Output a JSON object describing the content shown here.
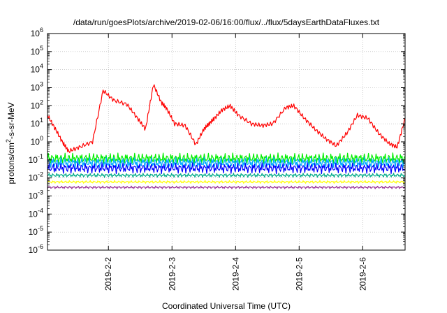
{
  "chart_data": {
    "type": "line",
    "title": "/data/run/goesPlots/archive/2019-02-06/16:00/flux/../flux/5daysEarthDataFluxes.txt",
    "xlabel": "Coordinated Universal Time (UTC)",
    "ylabel": "protons/cm²-s-sr-MeV",
    "ylabel_parts": {
      "pre": "protons/cm",
      "sup": "2",
      "post": "-s-sr-MeV"
    },
    "yscale": "log",
    "ylim_exponents": [
      -6,
      6
    ],
    "y_tick_labels": [
      {
        "base": "10",
        "exp": "-6"
      },
      {
        "base": "10",
        "exp": "-5"
      },
      {
        "base": "10",
        "exp": "-4"
      },
      {
        "base": "10",
        "exp": "-3"
      },
      {
        "base": "10",
        "exp": "-2"
      },
      {
        "base": "10",
        "exp": "-1"
      },
      {
        "base": "10",
        "exp": "0"
      },
      {
        "base": "10",
        "exp": "1"
      },
      {
        "base": "10",
        "exp": "2"
      },
      {
        "base": "10",
        "exp": "3"
      },
      {
        "base": "10",
        "exp": "4"
      },
      {
        "base": "10",
        "exp": "5"
      },
      {
        "base": "10",
        "exp": "6"
      }
    ],
    "x_tick_labels": [
      "2019-2-2",
      "2019-2-3",
      "2019-2-4",
      "2019-2-5",
      "2019-2-6"
    ],
    "xlim_days": [
      "2019-02-01T01:00",
      "2019-02-06T16:00"
    ],
    "grid": true,
    "series": [
      {
        "color": "#ff0000",
        "x": [
          "2019-02-01T01:00",
          "2019-02-01T04:00",
          "2019-02-01T07:00",
          "2019-02-01T09:00",
          "2019-02-01T13:00",
          "2019-02-01T18:00",
          "2019-02-01T22:00",
          "2019-02-02T02:00",
          "2019-02-02T07:00",
          "2019-02-02T11:00",
          "2019-02-02T14:00",
          "2019-02-02T17:00",
          "2019-02-02T20:00",
          "2019-02-02T22:00",
          "2019-02-03T01:00",
          "2019-02-03T05:00",
          "2019-02-03T09:00",
          "2019-02-03T12:00",
          "2019-02-03T14:00",
          "2019-02-03T16:00",
          "2019-02-03T19:00",
          "2019-02-03T22:00",
          "2019-02-04T01:00",
          "2019-02-04T06:00",
          "2019-02-04T10:00",
          "2019-02-04T14:00",
          "2019-02-04T19:00",
          "2019-02-04T22:00",
          "2019-02-05T02:00",
          "2019-02-05T06:00",
          "2019-02-05T10:00",
          "2019-02-05T14:00",
          "2019-02-05T18:00",
          "2019-02-05T22:00",
          "2019-02-06T02:00",
          "2019-02-06T06:00",
          "2019-02-06T10:00",
          "2019-02-06T13:00",
          "2019-02-06T16:00"
        ],
        "values": [
          30,
          5,
          0.8,
          0.3,
          0.5,
          1.0,
          700,
          200,
          120,
          20,
          5,
          1500,
          150,
          70,
          10,
          8,
          0.7,
          5,
          10,
          20,
          60,
          100,
          30,
          10,
          8,
          10,
          80,
          100,
          20,
          5,
          1.5,
          0.6,
          3,
          30,
          20,
          3,
          0.8,
          0.5,
          20
        ]
      },
      {
        "color": "#00ee00",
        "approx_level": 0.12
      },
      {
        "color": "#00aaff",
        "approx_level": 0.07
      },
      {
        "color": "#0000ff",
        "approx_level": 0.035
      },
      {
        "color": "#00aa88",
        "approx_level": 0.014
      },
      {
        "color": "#ffff00",
        "approx_level": 0.006
      },
      {
        "color": "#993399",
        "approx_level": 0.003
      }
    ]
  }
}
